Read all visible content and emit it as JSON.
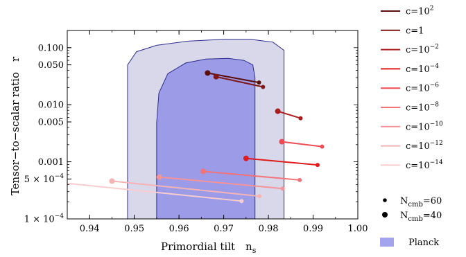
{
  "chart_data": {
    "type": "scatter",
    "title": "",
    "xlabel": "Primordial tilt",
    "xlabel_symbol": "n",
    "xlabel_symbol_sub": "s",
    "ylabel": "Tensor−to−scalar ratio",
    "ylabel_symbol": "r",
    "xlim": [
      0.935,
      1.0
    ],
    "ylim": [
      0.0001,
      0.2
    ],
    "yscale": "log",
    "grid": false,
    "legend_position": "right",
    "x_ticks": [
      0.94,
      0.95,
      0.96,
      0.97,
      0.98,
      0.99,
      1.0
    ],
    "x_tick_labels": [
      "0.94",
      "0.95",
      "0.96",
      "0.97",
      "0.98",
      "0.99",
      "1.00"
    ],
    "y_ticks": [
      {
        "value": 0.1,
        "label": "0.100"
      },
      {
        "value": 0.05,
        "label": "0.050"
      },
      {
        "value": 0.01,
        "label": "0.010"
      },
      {
        "value": 0.005,
        "label": "0.005"
      },
      {
        "value": 0.001,
        "label": "0.001"
      },
      {
        "value": 0.0005,
        "mantissa": "5",
        "exp": "−4"
      },
      {
        "value": 0.0001,
        "mantissa": "1",
        "exp": "−4"
      }
    ],
    "regions": [
      {
        "name": "Planck",
        "level": "outer",
        "color": "#d8d8ea",
        "edge": "#2b2b8a",
        "boundary": [
          [
            0.9485,
            0.0001
          ],
          [
            0.9485,
            0.05
          ],
          [
            0.9505,
            0.085
          ],
          [
            0.955,
            0.11
          ],
          [
            0.962,
            0.13
          ],
          [
            0.97,
            0.14
          ],
          [
            0.976,
            0.14
          ],
          [
            0.981,
            0.125
          ],
          [
            0.9835,
            0.09
          ],
          [
            0.9835,
            0.0001
          ]
        ]
      },
      {
        "name": "Planck",
        "level": "inner",
        "color": "#9b9be8",
        "edge": "#2b2b8a",
        "boundary": [
          [
            0.955,
            0.0001
          ],
          [
            0.955,
            0.0048
          ],
          [
            0.9555,
            0.016
          ],
          [
            0.9575,
            0.035
          ],
          [
            0.9615,
            0.054
          ],
          [
            0.966,
            0.063
          ],
          [
            0.971,
            0.065
          ],
          [
            0.9745,
            0.06
          ],
          [
            0.9765,
            0.05
          ],
          [
            0.977,
            0.03
          ],
          [
            0.977,
            0.0001
          ]
        ]
      }
    ],
    "series": [
      {
        "name": "c=10^2",
        "base": "c=10",
        "exp": "2",
        "color": "#5c0d0d",
        "x": [
          0.9664,
          0.9779
        ],
        "y": [
          0.036,
          0.0245
        ],
        "N": [
          40,
          60
        ]
      },
      {
        "name": "c=1",
        "base": "c=1",
        "exp": "",
        "color": "#801818",
        "x": [
          0.9683,
          0.9788
        ],
        "y": [
          0.031,
          0.0205
        ],
        "N": [
          40,
          60
        ]
      },
      {
        "name": "c=10^-2",
        "base": "c=10",
        "exp": "−2",
        "color": "#ad1c1c",
        "x": [
          0.9821,
          0.9872
        ],
        "y": [
          0.0077,
          0.0058
        ],
        "N": [
          40,
          60
        ]
      },
      {
        "name": "c=10^-4",
        "base": "c=10",
        "exp": "−4",
        "color": "#e01b1b",
        "x": [
          0.975,
          0.991
        ],
        "y": [
          0.00115,
          0.00088
        ],
        "N": [
          40,
          60
        ]
      },
      {
        "name": "c=10^-6",
        "base": "c=10",
        "exp": "−6",
        "color": "#ef4b54",
        "x": [
          0.983,
          0.992
        ],
        "y": [
          0.00225,
          0.00185
        ],
        "N": [
          40,
          60
        ]
      },
      {
        "name": "c=10^-8",
        "base": "c=10",
        "exp": "−8",
        "color": "#f2737a",
        "x": [
          0.9654,
          0.987
        ],
        "y": [
          0.00068,
          0.00048
        ],
        "N": [
          40,
          60
        ]
      },
      {
        "name": "c=10^-10",
        "base": "c=10",
        "exp": "−10",
        "color": "#f3939a",
        "x": [
          0.9556,
          0.9832
        ],
        "y": [
          0.00054,
          0.00034
        ],
        "N": [
          40,
          60
        ]
      },
      {
        "name": "c=10^-12",
        "base": "c=10",
        "exp": "−12",
        "color": "#f5b3b6",
        "x": [
          0.945,
          0.978
        ],
        "y": [
          0.00046,
          0.00025
        ],
        "N": [
          40,
          60
        ]
      },
      {
        "name": "c=10^-14",
        "base": "c=10",
        "exp": "−14",
        "color": "#f8cdcf",
        "x": [
          0.935,
          0.974
        ],
        "y": [
          0.00042,
          0.000205
        ],
        "N": [
          null,
          60
        ]
      }
    ],
    "legend_markers": [
      {
        "label": "N",
        "sub": "cmb",
        "value": "=60",
        "N": 60
      },
      {
        "label": "N",
        "sub": "cmb",
        "value": "=40",
        "N": 40
      }
    ],
    "legend_region": {
      "label": "Planck",
      "color": "#a3a3ee"
    }
  }
}
